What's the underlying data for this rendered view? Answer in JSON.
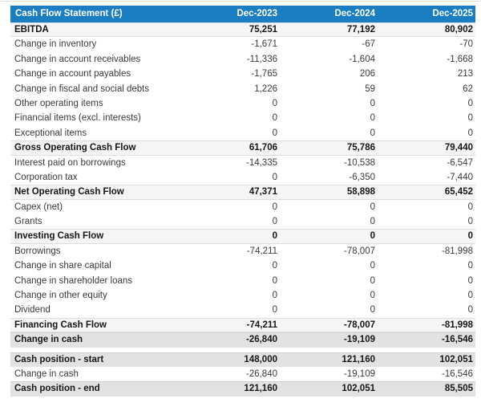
{
  "colors": {
    "header_bg": "#1b7ec2",
    "header_text": "#ffffff",
    "subtotal_row_bg": "#f5f5f5",
    "highlight_row_bg": "#e2e2e2",
    "body_text": "#3a3a3a"
  },
  "table": {
    "header": {
      "label": "Cash Flow Statement (£)",
      "columns": [
        "Dec-2023",
        "Dec-2024",
        "Dec-2025"
      ]
    },
    "rows": [
      {
        "label": "EBITDA",
        "values": [
          "75,251",
          "77,192",
          "80,902"
        ],
        "style": "subtotal"
      },
      {
        "label": "Change in inventory",
        "values": [
          "-1,671",
          "-67",
          "-70"
        ],
        "style": "normal"
      },
      {
        "label": "Change in account receivables",
        "values": [
          "-11,336",
          "-1,604",
          "-1,668"
        ],
        "style": "normal"
      },
      {
        "label": "Change in account payables",
        "values": [
          "-1,765",
          "206",
          "213"
        ],
        "style": "normal"
      },
      {
        "label": "Change in fiscal and social debts",
        "values": [
          "1,226",
          "59",
          "62"
        ],
        "style": "normal"
      },
      {
        "label": "Other operating items",
        "values": [
          "0",
          "0",
          "0"
        ],
        "style": "normal"
      },
      {
        "label": "Financial items (excl. interests)",
        "values": [
          "0",
          "0",
          "0"
        ],
        "style": "normal"
      },
      {
        "label": "Exceptional items",
        "values": [
          "0",
          "0",
          "0"
        ],
        "style": "normal"
      },
      {
        "label": "Gross Operating Cash Flow",
        "values": [
          "61,706",
          "75,786",
          "79,440"
        ],
        "style": "subtotal"
      },
      {
        "label": "Interest paid on borrowings",
        "values": [
          "-14,335",
          "-10,538",
          "-6,547"
        ],
        "style": "normal"
      },
      {
        "label": "Corporation tax",
        "values": [
          "0",
          "-6,350",
          "-7,440"
        ],
        "style": "normal"
      },
      {
        "label": "Net Operating Cash Flow",
        "values": [
          "47,371",
          "58,898",
          "65,452"
        ],
        "style": "subtotal"
      },
      {
        "label": "Capex (net)",
        "values": [
          "0",
          "0",
          "0"
        ],
        "style": "normal"
      },
      {
        "label": "Grants",
        "values": [
          "0",
          "0",
          "0"
        ],
        "style": "normal"
      },
      {
        "label": "Investing Cash Flow",
        "values": [
          "0",
          "0",
          "0"
        ],
        "style": "subtotal"
      },
      {
        "label": "Borrowings",
        "values": [
          "-74,211",
          "-78,007",
          "-81,998"
        ],
        "style": "normal"
      },
      {
        "label": "Change in share capital",
        "values": [
          "0",
          "0",
          "0"
        ],
        "style": "normal"
      },
      {
        "label": "Change in shareholder loans",
        "values": [
          "0",
          "0",
          "0"
        ],
        "style": "normal"
      },
      {
        "label": "Change in other equity",
        "values": [
          "0",
          "0",
          "0"
        ],
        "style": "normal"
      },
      {
        "label": "Dividend",
        "values": [
          "0",
          "0",
          "0"
        ],
        "style": "normal"
      },
      {
        "label": "Financing Cash Flow",
        "values": [
          "-74,211",
          "-78,007",
          "-81,998"
        ],
        "style": "subtotal"
      },
      {
        "label": "Change in cash",
        "values": [
          "-26,840",
          "-19,109",
          "-16,546"
        ],
        "style": "highlight"
      }
    ],
    "summary_rows": [
      {
        "label": "Cash position - start",
        "values": [
          "148,000",
          "121,160",
          "102,051"
        ],
        "style": "highlight"
      },
      {
        "label": "Change in cash",
        "values": [
          "-26,840",
          "-19,109",
          "-16,546"
        ],
        "style": "normal"
      },
      {
        "label": "Cash position - end",
        "values": [
          "121,160",
          "102,051",
          "85,505"
        ],
        "style": "highlight"
      }
    ]
  },
  "chart_data": {
    "type": "table",
    "title": "Cash Flow Statement (£)",
    "columns": [
      "Dec-2023",
      "Dec-2024",
      "Dec-2025"
    ],
    "rows": [
      [
        "EBITDA",
        75251,
        77192,
        80902
      ],
      [
        "Change in inventory",
        -1671,
        -67,
        -70
      ],
      [
        "Change in account receivables",
        -11336,
        -1604,
        -1668
      ],
      [
        "Change in account payables",
        -1765,
        206,
        213
      ],
      [
        "Change in fiscal and social debts",
        1226,
        59,
        62
      ],
      [
        "Other operating items",
        0,
        0,
        0
      ],
      [
        "Financial items (excl. interests)",
        0,
        0,
        0
      ],
      [
        "Exceptional items",
        0,
        0,
        0
      ],
      [
        "Gross Operating Cash Flow",
        61706,
        75786,
        79440
      ],
      [
        "Interest paid on borrowings",
        -14335,
        -10538,
        -6547
      ],
      [
        "Corporation tax",
        0,
        -6350,
        -7440
      ],
      [
        "Net Operating Cash Flow",
        47371,
        58898,
        65452
      ],
      [
        "Capex (net)",
        0,
        0,
        0
      ],
      [
        "Grants",
        0,
        0,
        0
      ],
      [
        "Investing Cash Flow",
        0,
        0,
        0
      ],
      [
        "Borrowings",
        -74211,
        -78007,
        -81998
      ],
      [
        "Change in share capital",
        0,
        0,
        0
      ],
      [
        "Change in shareholder loans",
        0,
        0,
        0
      ],
      [
        "Change in other equity",
        0,
        0,
        0
      ],
      [
        "Dividend",
        0,
        0,
        0
      ],
      [
        "Financing Cash Flow",
        -74211,
        -78007,
        -81998
      ],
      [
        "Change in cash",
        -26840,
        -19109,
        -16546
      ],
      [
        "Cash position - start",
        148000,
        121160,
        102051
      ],
      [
        "Change in cash",
        -26840,
        -19109,
        -16546
      ],
      [
        "Cash position - end",
        121160,
        102051,
        85505
      ]
    ]
  }
}
